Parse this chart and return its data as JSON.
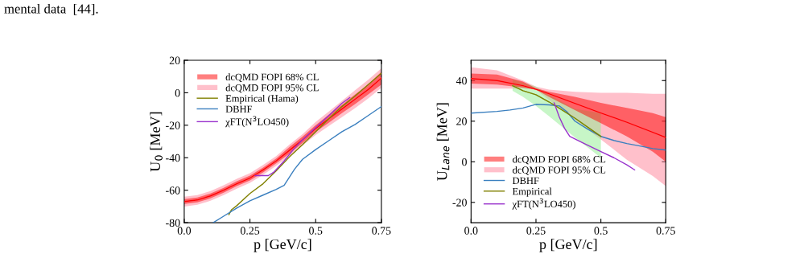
{
  "chart_data": [
    {
      "type": "line",
      "xlabel": "p [GeV/c]",
      "ylabel": "U$_{0}$ [MeV]",
      "annotations": [
        "mental data  [44]."
      ],
      "xlim": [
        0,
        0.75
      ],
      "xticks": [
        {
          "value": 0,
          "label": "0.0"
        },
        0.25,
        0.5,
        0.75
      ],
      "ylim": [
        -80,
        20
      ],
      "yticks": [
        -80,
        -60,
        -40,
        -20,
        0,
        20
      ],
      "legend": "top left",
      "series": [
        {
          "name": "dcQMD FOPI 68% CL",
          "color": "#ff0000",
          "x": [
            0,
            0.05,
            0.1,
            0.15,
            0.2,
            0.25,
            0.3,
            0.35,
            0.4,
            0.45,
            0.5,
            0.55,
            0.6,
            0.65,
            0.7,
            0.75
          ],
          "values": [
            -67,
            -66,
            -63.5,
            -60,
            -56,
            -52.5,
            -47.5,
            -42,
            -35.5,
            -29,
            -22,
            -16,
            -10,
            -4,
            2,
            9
          ],
          "lower": [
            -68.5,
            -67.5,
            -65,
            -61.5,
            -57.5,
            -54,
            -49,
            -43.5,
            -37.5,
            -31,
            -24,
            -18.5,
            -12.5,
            -7,
            -1,
            5
          ],
          "upper": [
            -65.5,
            -64.5,
            -62,
            -58.5,
            -54.5,
            -51,
            -46,
            -40.5,
            -33.5,
            -27,
            -20,
            -13.5,
            -7.5,
            -1,
            5,
            13
          ]
        },
        {
          "name": "dcQMD FOPI 95% CL",
          "color": "#ff8197",
          "x": [
            0,
            0.05,
            0.1,
            0.15,
            0.2,
            0.25,
            0.3,
            0.35,
            0.4,
            0.45,
            0.5,
            0.55,
            0.6,
            0.65,
            0.7,
            0.75
          ],
          "values": [
            -67,
            -66,
            -63.5,
            -60,
            -56,
            -52.5,
            -47.5,
            -42,
            -35.5,
            -29,
            -22,
            -16,
            -10,
            -4,
            2,
            9
          ],
          "lower": [
            -70,
            -69,
            -66.5,
            -63,
            -59,
            -55.5,
            -50.5,
            -45,
            -39,
            -32.5,
            -26,
            -20.5,
            -15,
            -9.5,
            -3.5,
            3
          ],
          "upper": [
            -64,
            -63,
            -60.5,
            -57,
            -53,
            -49.5,
            -44.5,
            -39,
            -32,
            -25.5,
            -18,
            -11.5,
            -5,
            1.5,
            8,
            15
          ]
        },
        {
          "name": "Empirical (Hama)",
          "color": "#808000",
          "x": [
            0.17,
            0.18,
            0.2,
            0.25,
            0.3,
            0.35,
            0.4,
            0.45,
            0.5,
            0.55,
            0.6,
            0.65,
            0.7,
            0.75
          ],
          "values": [
            -75,
            -72,
            -69.5,
            -62,
            -56,
            -48,
            -39.5,
            -32,
            -24,
            -16,
            -8.5,
            -2,
            5,
            12
          ]
        },
        {
          "name": "DBHF",
          "color": "#3a7fbf",
          "x": [
            0.11,
            0.15,
            0.2,
            0.25,
            0.3,
            0.35,
            0.38,
            0.42,
            0.45,
            0.5,
            0.55,
            0.6,
            0.65,
            0.7,
            0.75
          ],
          "values": [
            -80,
            -76,
            -71,
            -66.5,
            -63,
            -59.5,
            -57,
            -47,
            -41,
            -35,
            -29.5,
            -24,
            -19.5,
            -14,
            -8.5
          ]
        },
        {
          "name": "χFT(N$^{3}$LO450)",
          "color": "#9932cc",
          "x": [
            0.27,
            0.32,
            0.34,
            0.38,
            0.42,
            0.45,
            0.5,
            0.55,
            0.6,
            0.63
          ],
          "values": [
            -51,
            -51,
            -49,
            -42,
            -34,
            -29,
            -21.5,
            -14,
            -6.5,
            -3
          ]
        }
      ]
    },
    {
      "type": "line",
      "xlabel": "p [GeV/c]",
      "ylabel": "U$_{Lane}$ [MeV]",
      "xlim": [
        0,
        0.75
      ],
      "xticks": [
        {
          "value": 0,
          "label": "0.0"
        },
        0.25,
        0.5,
        0.75
      ],
      "ylim": [
        -30,
        50
      ],
      "yticks": [
        -20,
        0,
        20,
        40
      ],
      "legend": "bottom left",
      "series": [
        {
          "name": "dcQMD FOPI 68% CL",
          "color": "#ff0000",
          "x": [
            0,
            0.1,
            0.2,
            0.25,
            0.3,
            0.4,
            0.5,
            0.6,
            0.7,
            0.75
          ],
          "values": [
            41,
            40,
            37.5,
            35.7,
            33.5,
            28.8,
            24,
            19.5,
            14.5,
            12
          ],
          "lower": [
            38.5,
            38,
            36.5,
            35.5,
            32,
            25.5,
            19,
            12.5,
            5,
            0
          ],
          "upper": [
            43.5,
            43,
            39.5,
            36.2,
            34.5,
            32,
            29,
            26.5,
            24,
            22
          ]
        },
        {
          "name": "dcQMD FOPI 95% CL",
          "color": "#ff8197",
          "x": [
            0,
            0.1,
            0.2,
            0.25,
            0.3,
            0.4,
            0.5,
            0.6,
            0.7,
            0.75
          ],
          "values": [
            41,
            40,
            37.5,
            35.7,
            33.5,
            28.8,
            24,
            19.5,
            14.5,
            12
          ],
          "lower": [
            36,
            36,
            36,
            35.5,
            30.5,
            20.5,
            11,
            1,
            -7,
            -12
          ],
          "upper": [
            46.5,
            45,
            40,
            37,
            35.5,
            34.5,
            34,
            34,
            33.5,
            33.5
          ]
        },
        {
          "name": "DBHF",
          "color": "#3a7fbf",
          "x": [
            0,
            0.1,
            0.15,
            0.2,
            0.25,
            0.3,
            0.34,
            0.37,
            0.4,
            0.45,
            0.5,
            0.55,
            0.6,
            0.65,
            0.7,
            0.75
          ],
          "values": [
            24,
            24.8,
            25.5,
            26.5,
            28.3,
            28,
            27.5,
            24.5,
            20,
            16,
            12.5,
            10.5,
            9,
            7.8,
            6.5,
            5.8
          ]
        },
        {
          "color": "#90ee90",
          "x": [
            0.16,
            0.2,
            0.25,
            0.3,
            0.4,
            0.5
          ],
          "values": [
            37.5,
            35,
            33,
            29.5,
            21.5,
            12.5
          ],
          "lower": [
            35,
            32,
            27.5,
            22.5,
            12,
            2
          ],
          "upper": [
            40.5,
            39,
            37,
            33,
            26,
            24
          ]
        },
        {
          "name": "Empirical",
          "color": "#808000",
          "x": [
            0.16,
            0.2,
            0.25,
            0.3,
            0.32,
            0.4,
            0.45,
            0.5
          ],
          "values": [
            37.5,
            35,
            33,
            29.5,
            28,
            21.5,
            17,
            12.5
          ]
        },
        {
          "name": "χFT(N$^{3}$LO450)",
          "color": "#9932cc",
          "x": [
            0.32,
            0.34,
            0.36,
            0.38,
            0.42,
            0.5,
            0.55,
            0.6,
            0.63
          ],
          "values": [
            29,
            22,
            16.5,
            12.5,
            10,
            5,
            2,
            -1.5,
            -4
          ]
        }
      ]
    }
  ]
}
